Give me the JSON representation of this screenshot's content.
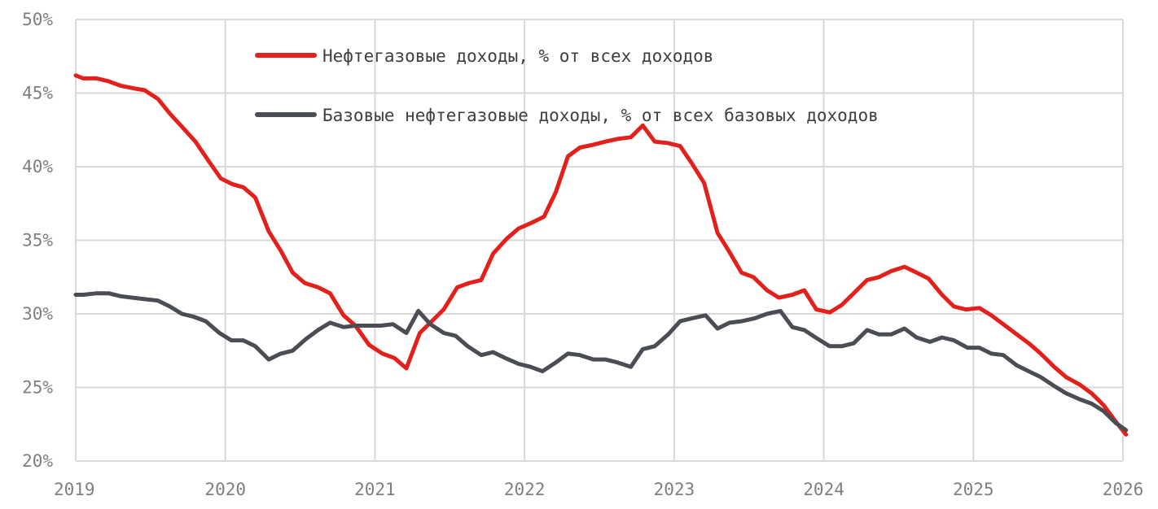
{
  "chart_data": {
    "type": "line",
    "x_labels": [
      "2019",
      "2020",
      "2021",
      "2022",
      "2023",
      "2024",
      "2025",
      "2026"
    ],
    "y_labels": [
      "20%",
      "25%",
      "30%",
      "35%",
      "40%",
      "45%",
      "50%"
    ],
    "ylim": [
      20,
      50
    ],
    "xlim": [
      2019,
      2026
    ],
    "grid": true,
    "legend_position": "top-right",
    "series": [
      {
        "name": "Нефтегазовые доходы, % от всех доходов",
        "color": "#e3201b",
        "points": [
          [
            2019.0,
            46.2
          ],
          [
            2019.05,
            46.0
          ],
          [
            2019.14,
            46.0
          ],
          [
            2019.22,
            45.8
          ],
          [
            2019.3,
            45.5
          ],
          [
            2019.4,
            45.3
          ],
          [
            2019.46,
            45.2
          ],
          [
            2019.55,
            44.6
          ],
          [
            2019.63,
            43.6
          ],
          [
            2019.72,
            42.6
          ],
          [
            2019.8,
            41.7
          ],
          [
            2019.88,
            40.5
          ],
          [
            2019.97,
            39.2
          ],
          [
            2020.05,
            38.8
          ],
          [
            2020.12,
            38.6
          ],
          [
            2020.2,
            37.9
          ],
          [
            2020.29,
            35.6
          ],
          [
            2020.37,
            34.3
          ],
          [
            2020.45,
            32.8
          ],
          [
            2020.53,
            32.1
          ],
          [
            2020.62,
            31.8
          ],
          [
            2020.7,
            31.4
          ],
          [
            2020.79,
            29.9
          ],
          [
            2020.87,
            29.2
          ],
          [
            2020.96,
            27.9
          ],
          [
            2021.05,
            27.3
          ],
          [
            2021.13,
            27.0
          ],
          [
            2021.21,
            26.3
          ],
          [
            2021.3,
            28.7
          ],
          [
            2021.38,
            29.5
          ],
          [
            2021.46,
            30.3
          ],
          [
            2021.55,
            31.8
          ],
          [
            2021.63,
            32.1
          ],
          [
            2021.71,
            32.3
          ],
          [
            2021.79,
            34.1
          ],
          [
            2021.88,
            35.1
          ],
          [
            2021.96,
            35.8
          ],
          [
            2022.05,
            36.2
          ],
          [
            2022.13,
            36.6
          ],
          [
            2022.21,
            38.3
          ],
          [
            2022.29,
            40.7
          ],
          [
            2022.37,
            41.3
          ],
          [
            2022.46,
            41.5
          ],
          [
            2022.54,
            41.7
          ],
          [
            2022.63,
            41.9
          ],
          [
            2022.71,
            42.0
          ],
          [
            2022.79,
            42.8
          ],
          [
            2022.87,
            41.7
          ],
          [
            2022.96,
            41.6
          ],
          [
            2023.04,
            41.4
          ],
          [
            2023.12,
            40.2
          ],
          [
            2023.2,
            38.9
          ],
          [
            2023.29,
            35.5
          ],
          [
            2023.37,
            34.2
          ],
          [
            2023.45,
            32.8
          ],
          [
            2023.53,
            32.5
          ],
          [
            2023.62,
            31.6
          ],
          [
            2023.7,
            31.1
          ],
          [
            2023.79,
            31.3
          ],
          [
            2023.87,
            31.6
          ],
          [
            2023.95,
            30.3
          ],
          [
            2024.04,
            30.1
          ],
          [
            2024.12,
            30.6
          ],
          [
            2024.2,
            31.4
          ],
          [
            2024.29,
            32.3
          ],
          [
            2024.37,
            32.5
          ],
          [
            2024.45,
            32.9
          ],
          [
            2024.54,
            33.2
          ],
          [
            2024.62,
            32.8
          ],
          [
            2024.7,
            32.4
          ],
          [
            2024.79,
            31.3
          ],
          [
            2024.87,
            30.5
          ],
          [
            2024.95,
            30.3
          ],
          [
            2025.04,
            30.4
          ],
          [
            2025.12,
            29.9
          ],
          [
            2025.2,
            29.3
          ],
          [
            2025.29,
            28.6
          ],
          [
            2025.37,
            28.0
          ],
          [
            2025.45,
            27.3
          ],
          [
            2025.54,
            26.4
          ],
          [
            2025.62,
            25.7
          ],
          [
            2025.71,
            25.2
          ],
          [
            2025.79,
            24.6
          ],
          [
            2025.87,
            23.8
          ],
          [
            2025.95,
            22.7
          ],
          [
            2026.02,
            21.8
          ]
        ]
      },
      {
        "name": "Базовые нефтегазовые доходы, % от всех базовых доходов",
        "color": "#4a4d54",
        "points": [
          [
            2019.0,
            31.3
          ],
          [
            2019.05,
            31.3
          ],
          [
            2019.14,
            31.4
          ],
          [
            2019.22,
            31.4
          ],
          [
            2019.3,
            31.2
          ],
          [
            2019.38,
            31.1
          ],
          [
            2019.46,
            31.0
          ],
          [
            2019.55,
            30.9
          ],
          [
            2019.63,
            30.5
          ],
          [
            2019.71,
            30.0
          ],
          [
            2019.79,
            29.8
          ],
          [
            2019.87,
            29.5
          ],
          [
            2019.96,
            28.7
          ],
          [
            2020.04,
            28.2
          ],
          [
            2020.12,
            28.2
          ],
          [
            2020.2,
            27.8
          ],
          [
            2020.29,
            26.9
          ],
          [
            2020.37,
            27.3
          ],
          [
            2020.45,
            27.5
          ],
          [
            2020.54,
            28.3
          ],
          [
            2020.62,
            28.9
          ],
          [
            2020.7,
            29.4
          ],
          [
            2020.79,
            29.1
          ],
          [
            2020.87,
            29.2
          ],
          [
            2020.96,
            29.2
          ],
          [
            2021.04,
            29.2
          ],
          [
            2021.12,
            29.3
          ],
          [
            2021.21,
            28.7
          ],
          [
            2021.29,
            30.2
          ],
          [
            2021.37,
            29.3
          ],
          [
            2021.46,
            28.7
          ],
          [
            2021.54,
            28.5
          ],
          [
            2021.62,
            27.8
          ],
          [
            2021.71,
            27.2
          ],
          [
            2021.79,
            27.4
          ],
          [
            2021.87,
            27.0
          ],
          [
            2021.96,
            26.6
          ],
          [
            2022.04,
            26.4
          ],
          [
            2022.12,
            26.1
          ],
          [
            2022.21,
            26.7
          ],
          [
            2022.29,
            27.3
          ],
          [
            2022.37,
            27.2
          ],
          [
            2022.46,
            26.9
          ],
          [
            2022.54,
            26.9
          ],
          [
            2022.62,
            26.7
          ],
          [
            2022.71,
            26.4
          ],
          [
            2022.79,
            27.6
          ],
          [
            2022.87,
            27.8
          ],
          [
            2022.96,
            28.6
          ],
          [
            2023.04,
            29.5
          ],
          [
            2023.12,
            29.7
          ],
          [
            2023.21,
            29.9
          ],
          [
            2023.29,
            29.0
          ],
          [
            2023.37,
            29.4
          ],
          [
            2023.45,
            29.5
          ],
          [
            2023.54,
            29.7
          ],
          [
            2023.62,
            30.0
          ],
          [
            2023.71,
            30.2
          ],
          [
            2023.79,
            29.1
          ],
          [
            2023.87,
            28.9
          ],
          [
            2023.96,
            28.3
          ],
          [
            2024.04,
            27.8
          ],
          [
            2024.12,
            27.8
          ],
          [
            2024.2,
            28.0
          ],
          [
            2024.29,
            28.9
          ],
          [
            2024.37,
            28.6
          ],
          [
            2024.45,
            28.6
          ],
          [
            2024.54,
            29.0
          ],
          [
            2024.62,
            28.4
          ],
          [
            2024.71,
            28.1
          ],
          [
            2024.79,
            28.4
          ],
          [
            2024.87,
            28.2
          ],
          [
            2024.96,
            27.7
          ],
          [
            2025.04,
            27.7
          ],
          [
            2025.12,
            27.3
          ],
          [
            2025.2,
            27.2
          ],
          [
            2025.29,
            26.5
          ],
          [
            2025.37,
            26.1
          ],
          [
            2025.45,
            25.7
          ],
          [
            2025.54,
            25.1
          ],
          [
            2025.62,
            24.6
          ],
          [
            2025.71,
            24.2
          ],
          [
            2025.79,
            23.9
          ],
          [
            2025.87,
            23.4
          ],
          [
            2025.95,
            22.6
          ],
          [
            2026.02,
            22.1
          ]
        ]
      }
    ]
  }
}
